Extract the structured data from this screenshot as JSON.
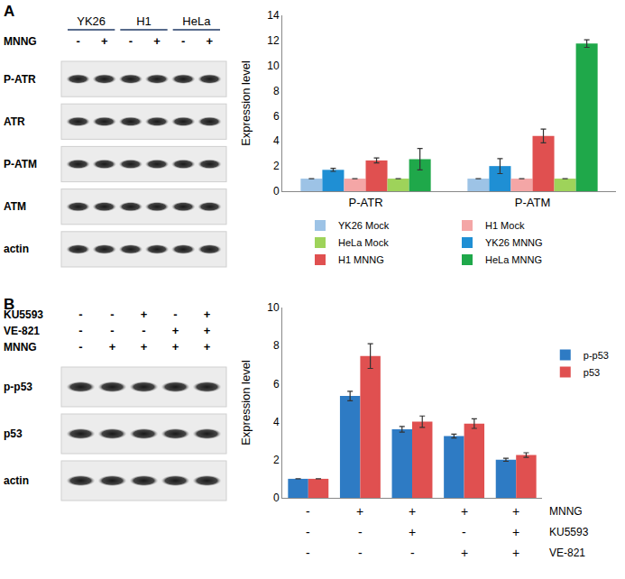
{
  "blots": [
    {
      "panel": "A",
      "lane_groups": [
        {
          "name": "YK26",
          "span": 2
        },
        {
          "name": "H1",
          "span": 2
        },
        {
          "name": "HeLa",
          "span": 2
        }
      ],
      "treatments": [
        {
          "name": "MNNG",
          "values": [
            "-",
            "+",
            "-",
            "+",
            "-",
            "+"
          ]
        }
      ],
      "bands": [
        "P-ATR",
        "ATR",
        "P-ATM",
        "ATM",
        "actin"
      ]
    },
    {
      "panel": "B",
      "treatments": [
        {
          "name": "KU5593",
          "values": [
            "-",
            "-",
            "+",
            "-",
            "+"
          ]
        },
        {
          "name": "VE-821",
          "values": [
            "-",
            "-",
            "-",
            "+",
            "+"
          ]
        },
        {
          "name": "MNNG",
          "values": [
            "-",
            "+",
            "+",
            "+",
            "+"
          ]
        }
      ],
      "bands": [
        "p-p53",
        "p53",
        "actin"
      ]
    }
  ],
  "chart_data": [
    {
      "type": "bar",
      "categories": [
        "P-ATR",
        "P-ATM"
      ],
      "y_label": "Expression level",
      "ylim": [
        0,
        14
      ],
      "yticks": [
        0,
        2,
        4,
        6,
        8,
        10,
        12,
        14
      ],
      "grid": false,
      "legend": "bottom",
      "series": [
        {
          "name": "YK26 Mock",
          "color": "#9dc3e6",
          "values": [
            1,
            1
          ],
          "errors": [
            null,
            null
          ]
        },
        {
          "name": "YK26 MNNG",
          "color": "#1f8fd4",
          "values": [
            1.7,
            2.0
          ],
          "errors": [
            0.12,
            0.6
          ]
        },
        {
          "name": "H1 Mock",
          "color": "#f4a6a6",
          "values": [
            1,
            1
          ],
          "errors": [
            null,
            null
          ]
        },
        {
          "name": "H1 MNNG",
          "color": "#e05050",
          "values": [
            2.45,
            4.4
          ],
          "errors": [
            0.2,
            0.55
          ]
        },
        {
          "name": "HeLa Mock",
          "color": "#9ed35a",
          "values": [
            1,
            1
          ],
          "errors": [
            null,
            null
          ]
        },
        {
          "name": "HeLa MNNG",
          "color": "#1fa84a",
          "values": [
            2.55,
            11.75
          ],
          "errors": [
            0.85,
            0.3
          ]
        }
      ]
    },
    {
      "type": "bar",
      "categories": [
        null,
        null,
        null,
        null,
        null
      ],
      "y_label": "Expression level",
      "ylim": [
        0,
        10
      ],
      "yticks": [
        0,
        2,
        4,
        6,
        8,
        10
      ],
      "grid": false,
      "legend": "right",
      "tick_labels": "y",
      "x_table": [
        {
          "name": "MNNG",
          "values": [
            "-",
            "+",
            "+",
            "+",
            "+"
          ]
        },
        {
          "name": "KU5593",
          "values": [
            "-",
            "-",
            "+",
            "-",
            "+"
          ]
        },
        {
          "name": "VE-821",
          "values": [
            "-",
            "-",
            "-",
            "+",
            "+"
          ]
        }
      ],
      "series": [
        {
          "name": "p-p53",
          "color": "#2e7bc4",
          "values": [
            1,
            5.35,
            3.6,
            3.25,
            2.0
          ],
          "errors": [
            null,
            0.25,
            0.15,
            0.1,
            0.08
          ]
        },
        {
          "name": "p53",
          "color": "#e05050",
          "values": [
            1,
            7.45,
            4.0,
            3.9,
            2.25
          ],
          "errors": [
            null,
            0.65,
            0.3,
            0.25,
            0.12
          ]
        }
      ]
    }
  ]
}
